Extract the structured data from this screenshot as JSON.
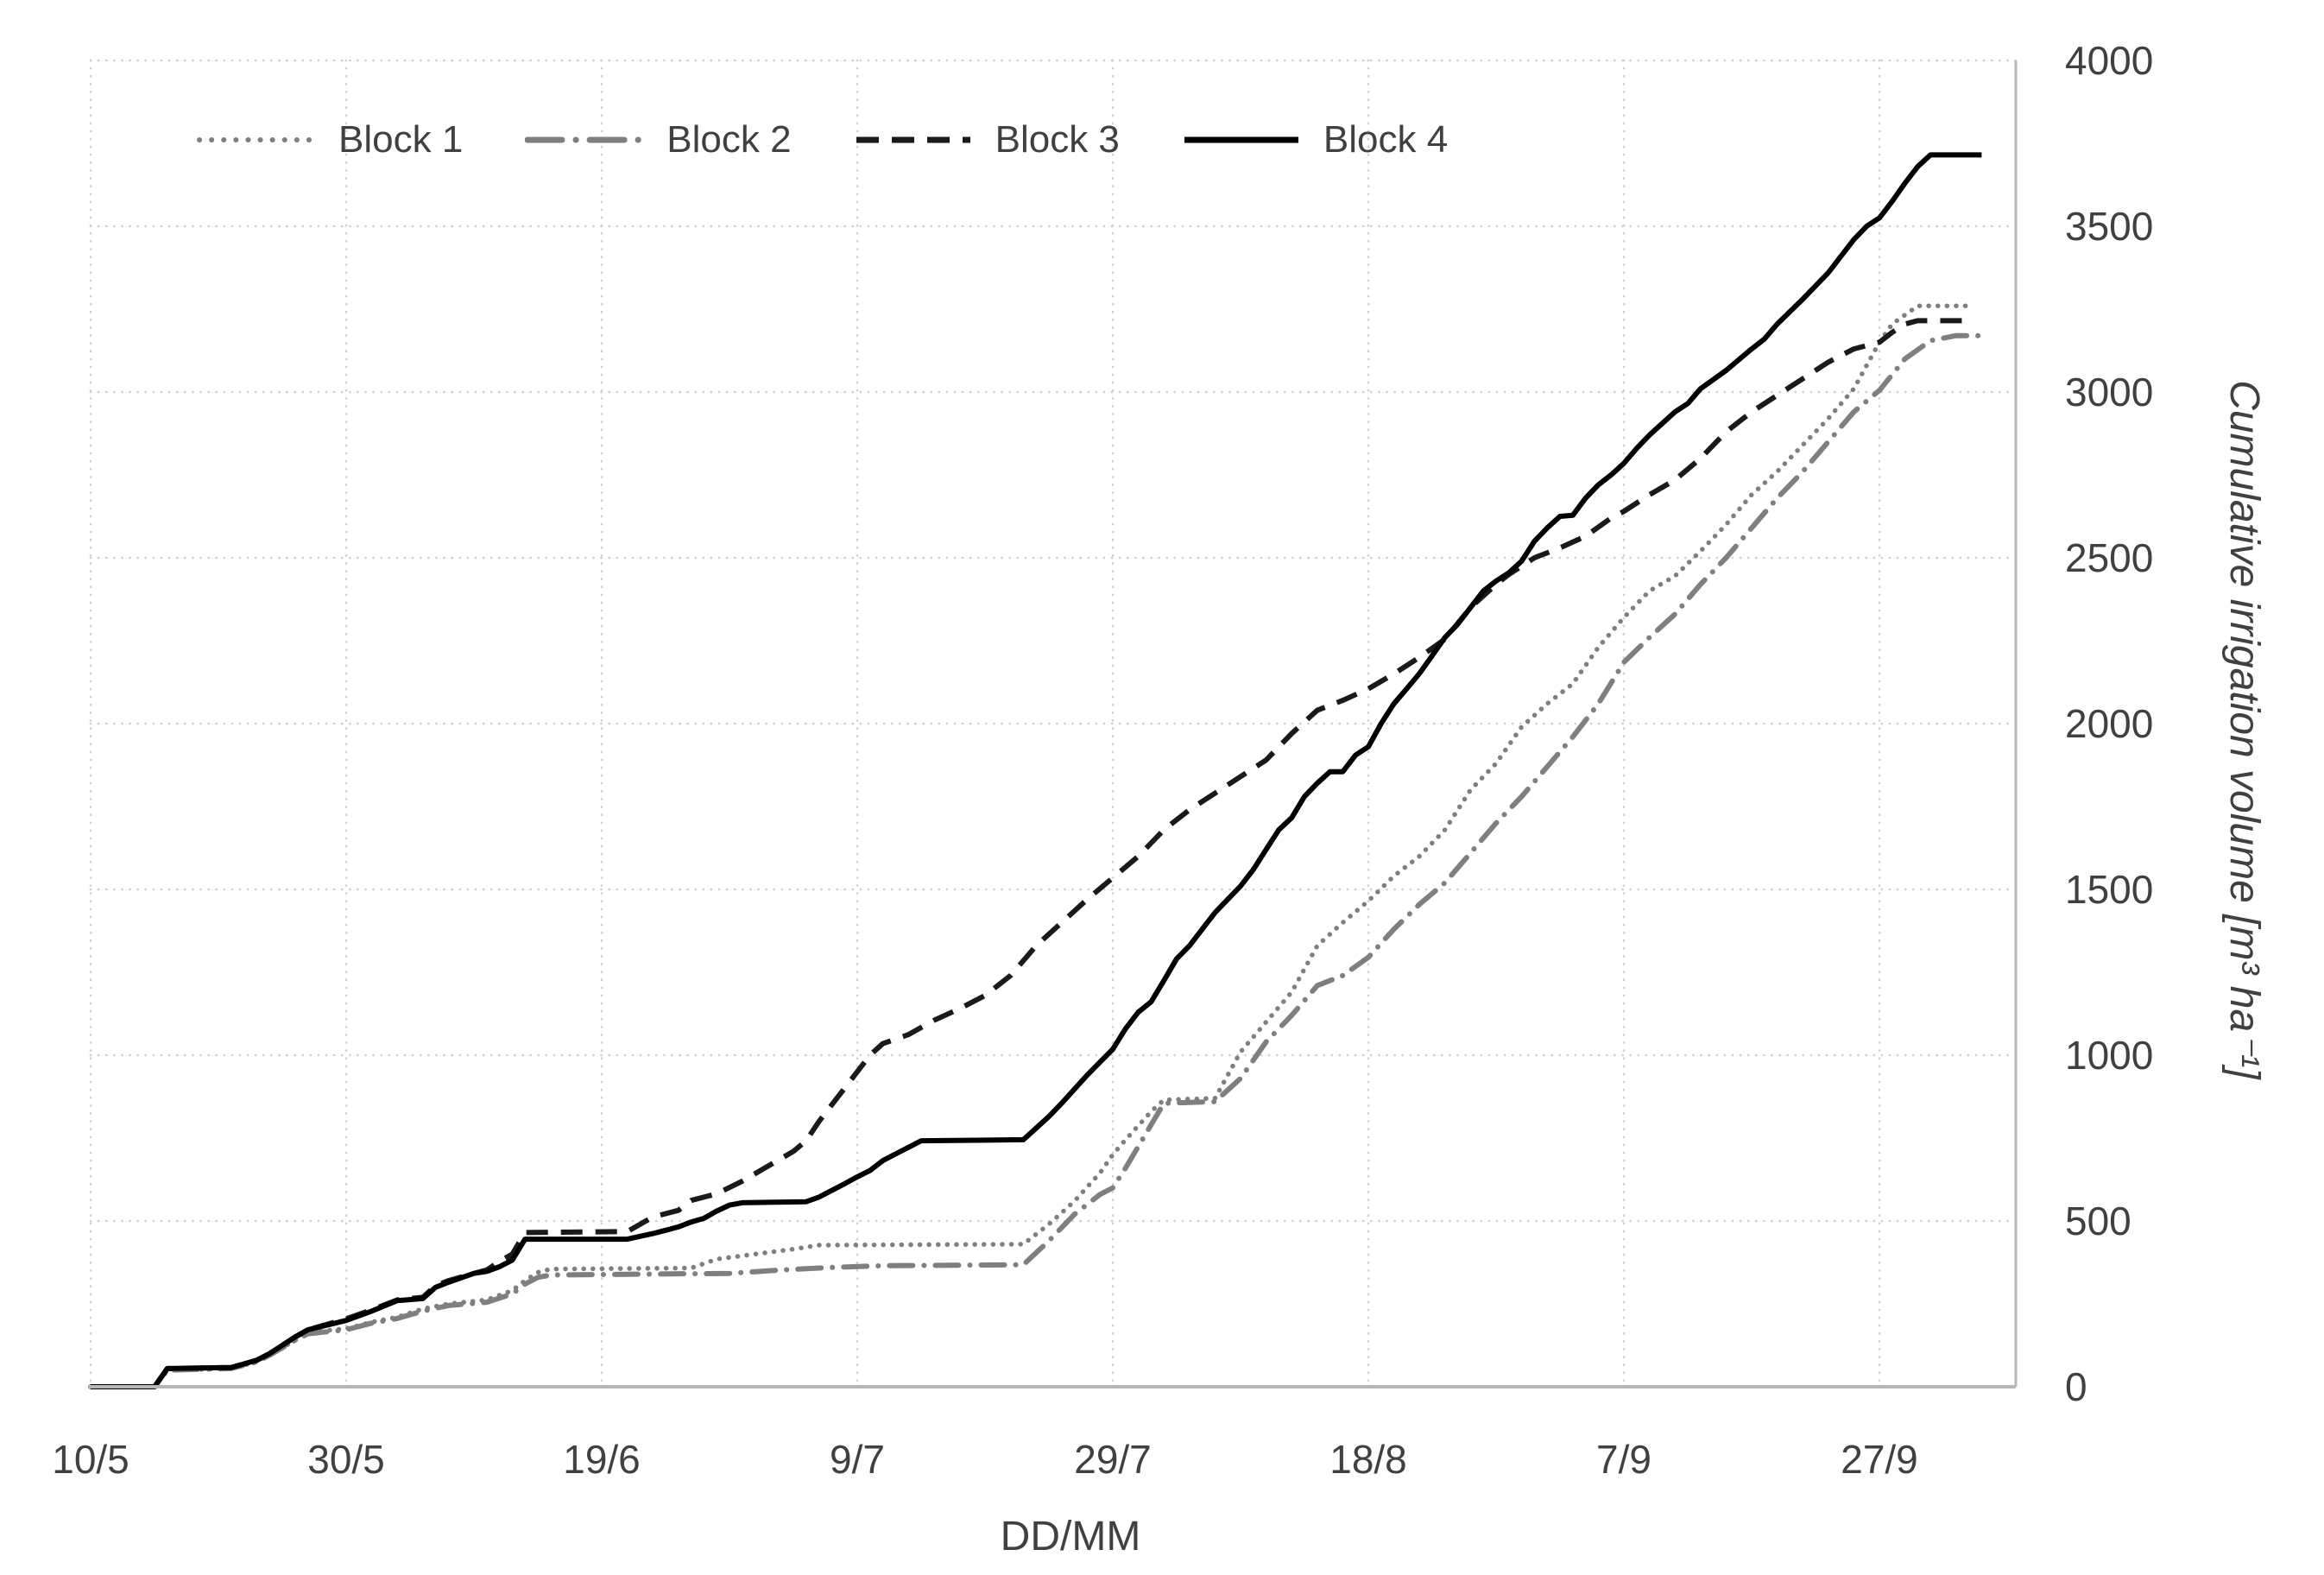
{
  "chart_data": {
    "type": "line",
    "title": "",
    "xlabel": "DD/MM",
    "ylabel": "Cumulative irrigation volume [m³ ha⁻¹]",
    "x_tick_labels": [
      "10/5",
      "30/5",
      "19/6",
      "9/7",
      "29/7",
      "18/8",
      "7/9",
      "27/9"
    ],
    "x_tick_days": [
      0,
      20,
      40,
      60,
      80,
      100,
      120,
      140
    ],
    "x_range_days": [
      0,
      150.6
    ],
    "ylim": [
      0,
      4000
    ],
    "y_ticks": [
      0,
      500,
      1000,
      1500,
      2000,
      2500,
      3000,
      3500,
      4000
    ],
    "grid": "dotted, both axes",
    "legend_position": "top-inside",
    "legend_labels": [
      "Block 1",
      "Block 2",
      "Block 3",
      "Block 4"
    ],
    "series": [
      {
        "name": "Block 1",
        "style": "dotted",
        "color": "#7f7f7f",
        "points": [
          [
            0,
            0
          ],
          [
            5,
            0
          ],
          [
            6,
            50
          ],
          [
            11,
            55
          ],
          [
            13,
            75
          ],
          [
            14,
            95
          ],
          [
            16,
            140
          ],
          [
            17,
            165
          ],
          [
            20,
            175
          ],
          [
            22,
            195
          ],
          [
            24,
            210
          ],
          [
            26,
            235
          ],
          [
            28,
            250
          ],
          [
            31,
            262
          ],
          [
            33,
            290
          ],
          [
            34,
            320
          ],
          [
            35,
            345
          ],
          [
            36,
            355
          ],
          [
            47,
            358
          ],
          [
            49,
            385
          ],
          [
            52,
            400
          ],
          [
            55,
            415
          ],
          [
            57,
            427
          ],
          [
            73,
            430
          ],
          [
            75,
            490
          ],
          [
            77,
            560
          ],
          [
            79,
            645
          ],
          [
            80,
            700
          ],
          [
            81,
            745
          ],
          [
            83,
            830
          ],
          [
            84,
            865
          ],
          [
            88,
            870
          ],
          [
            90,
            1010
          ],
          [
            92,
            1100
          ],
          [
            94,
            1190
          ],
          [
            96,
            1330
          ],
          [
            98,
            1400
          ],
          [
            100,
            1465
          ],
          [
            102,
            1540
          ],
          [
            104,
            1600
          ],
          [
            106,
            1680
          ],
          [
            108,
            1800
          ],
          [
            110,
            1880
          ],
          [
            112,
            1990
          ],
          [
            114,
            2060
          ],
          [
            116,
            2120
          ],
          [
            118,
            2230
          ],
          [
            120,
            2320
          ],
          [
            122,
            2400
          ],
          [
            124,
            2445
          ],
          [
            126,
            2520
          ],
          [
            128,
            2600
          ],
          [
            130,
            2690
          ],
          [
            132,
            2760
          ],
          [
            134,
            2840
          ],
          [
            136,
            2920
          ],
          [
            138,
            3010
          ],
          [
            140,
            3150
          ],
          [
            141,
            3205
          ],
          [
            143,
            3260
          ],
          [
            147,
            3260
          ]
        ]
      },
      {
        "name": "Block 2",
        "style": "dash-dot",
        "color": "#7f7f7f",
        "points": [
          [
            0,
            0
          ],
          [
            5,
            0
          ],
          [
            6,
            50
          ],
          [
            11,
            55
          ],
          [
            13,
            75
          ],
          [
            14,
            95
          ],
          [
            16,
            140
          ],
          [
            17,
            160
          ],
          [
            20,
            172
          ],
          [
            22,
            192
          ],
          [
            24,
            206
          ],
          [
            26,
            228
          ],
          [
            28,
            245
          ],
          [
            31,
            255
          ],
          [
            33,
            280
          ],
          [
            34,
            310
          ],
          [
            35,
            330
          ],
          [
            36,
            337
          ],
          [
            50,
            342
          ],
          [
            54,
            352
          ],
          [
            58,
            360
          ],
          [
            62,
            365
          ],
          [
            73,
            368
          ],
          [
            75,
            440
          ],
          [
            77,
            520
          ],
          [
            79,
            580
          ],
          [
            80,
            600
          ],
          [
            81,
            660
          ],
          [
            83,
            790
          ],
          [
            84,
            855
          ],
          [
            88,
            860
          ],
          [
            90,
            930
          ],
          [
            92,
            1040
          ],
          [
            94,
            1120
          ],
          [
            96,
            1210
          ],
          [
            98,
            1240
          ],
          [
            100,
            1295
          ],
          [
            102,
            1380
          ],
          [
            104,
            1455
          ],
          [
            106,
            1520
          ],
          [
            108,
            1610
          ],
          [
            110,
            1700
          ],
          [
            112,
            1780
          ],
          [
            114,
            1870
          ],
          [
            116,
            1960
          ],
          [
            118,
            2060
          ],
          [
            120,
            2185
          ],
          [
            122,
            2260
          ],
          [
            124,
            2330
          ],
          [
            126,
            2420
          ],
          [
            128,
            2500
          ],
          [
            130,
            2590
          ],
          [
            132,
            2680
          ],
          [
            134,
            2760
          ],
          [
            136,
            2850
          ],
          [
            138,
            2940
          ],
          [
            140,
            3005
          ],
          [
            142,
            3100
          ],
          [
            144,
            3155
          ],
          [
            146,
            3170
          ],
          [
            148,
            3170
          ]
        ]
      },
      {
        "name": "Block 3",
        "style": "dashed",
        "color": "#1a1a1a",
        "points": [
          [
            0,
            0
          ],
          [
            5,
            0
          ],
          [
            6,
            55
          ],
          [
            11,
            58
          ],
          [
            13,
            80
          ],
          [
            14,
            100
          ],
          [
            16,
            150
          ],
          [
            17,
            172
          ],
          [
            20,
            205
          ],
          [
            22,
            232
          ],
          [
            24,
            262
          ],
          [
            26,
            270
          ],
          [
            27,
            305
          ],
          [
            28,
            320
          ],
          [
            30,
            342
          ],
          [
            31,
            352
          ],
          [
            32,
            378
          ],
          [
            33,
            400
          ],
          [
            34,
            465
          ],
          [
            42,
            468
          ],
          [
            44,
            512
          ],
          [
            46,
            532
          ],
          [
            47,
            562
          ],
          [
            49,
            582
          ],
          [
            51,
            620
          ],
          [
            53,
            665
          ],
          [
            55,
            710
          ],
          [
            56,
            742
          ],
          [
            57,
            800
          ],
          [
            58,
            850
          ],
          [
            60,
            950
          ],
          [
            61,
            1000
          ],
          [
            62,
            1035
          ],
          [
            64,
            1062
          ],
          [
            66,
            1105
          ],
          [
            68,
            1140
          ],
          [
            70,
            1180
          ],
          [
            72,
            1240
          ],
          [
            74,
            1330
          ],
          [
            76,
            1400
          ],
          [
            78,
            1470
          ],
          [
            80,
            1535
          ],
          [
            82,
            1600
          ],
          [
            84,
            1680
          ],
          [
            86,
            1740
          ],
          [
            88,
            1790
          ],
          [
            90,
            1840
          ],
          [
            92,
            1890
          ],
          [
            94,
            1970
          ],
          [
            96,
            2040
          ],
          [
            98,
            2070
          ],
          [
            100,
            2105
          ],
          [
            102,
            2150
          ],
          [
            104,
            2200
          ],
          [
            106,
            2255
          ],
          [
            108,
            2350
          ],
          [
            110,
            2420
          ],
          [
            111,
            2450
          ],
          [
            113,
            2500
          ],
          [
            115,
            2530
          ],
          [
            117,
            2565
          ],
          [
            119,
            2620
          ],
          [
            120,
            2640
          ],
          [
            122,
            2690
          ],
          [
            124,
            2735
          ],
          [
            126,
            2800
          ],
          [
            128,
            2880
          ],
          [
            130,
            2940
          ],
          [
            132,
            2990
          ],
          [
            134,
            3040
          ],
          [
            136,
            3090
          ],
          [
            138,
            3130
          ],
          [
            140,
            3150
          ],
          [
            141,
            3180
          ],
          [
            142,
            3205
          ],
          [
            143,
            3215
          ],
          [
            147,
            3215
          ]
        ]
      },
      {
        "name": "Block 4",
        "style": "solid",
        "color": "#000000",
        "points": [
          [
            0,
            0
          ],
          [
            5,
            0
          ],
          [
            6,
            55
          ],
          [
            11,
            58
          ],
          [
            13,
            80
          ],
          [
            14,
            100
          ],
          [
            16,
            150
          ],
          [
            17,
            172
          ],
          [
            20,
            200
          ],
          [
            22,
            228
          ],
          [
            24,
            260
          ],
          [
            26,
            266
          ],
          [
            27,
            300
          ],
          [
            28,
            315
          ],
          [
            30,
            342
          ],
          [
            31,
            348
          ],
          [
            32,
            362
          ],
          [
            33,
            382
          ],
          [
            34,
            445
          ],
          [
            42,
            445
          ],
          [
            44,
            462
          ],
          [
            45,
            472
          ],
          [
            46,
            482
          ],
          [
            47,
            497
          ],
          [
            48,
            508
          ],
          [
            49,
            530
          ],
          [
            50,
            548
          ],
          [
            51,
            555
          ],
          [
            56,
            558
          ],
          [
            57,
            572
          ],
          [
            58,
            592
          ],
          [
            59,
            612
          ],
          [
            60,
            633
          ],
          [
            61,
            652
          ],
          [
            62,
            682
          ],
          [
            63,
            702
          ],
          [
            64,
            722
          ],
          [
            65,
            742
          ],
          [
            73,
            745
          ],
          [
            74,
            780
          ],
          [
            75,
            815
          ],
          [
            76,
            855
          ],
          [
            78,
            940
          ],
          [
            80,
            1018
          ],
          [
            81,
            1080
          ],
          [
            82,
            1130
          ],
          [
            83,
            1161
          ],
          [
            84,
            1225
          ],
          [
            85,
            1291
          ],
          [
            86,
            1330
          ],
          [
            87,
            1380
          ],
          [
            88,
            1430
          ],
          [
            89,
            1470
          ],
          [
            90,
            1510
          ],
          [
            91,
            1560
          ],
          [
            92,
            1620
          ],
          [
            93,
            1680
          ],
          [
            94,
            1716
          ],
          [
            95,
            1780
          ],
          [
            96,
            1820
          ],
          [
            97,
            1855
          ],
          [
            98,
            1855
          ],
          [
            99,
            1905
          ],
          [
            100,
            1930
          ],
          [
            101,
            2000
          ],
          [
            102,
            2060
          ],
          [
            103,
            2105
          ],
          [
            104,
            2151
          ],
          [
            105,
            2205
          ],
          [
            106,
            2260
          ],
          [
            107,
            2300
          ],
          [
            108,
            2350
          ],
          [
            109,
            2400
          ],
          [
            110,
            2430
          ],
          [
            111,
            2455
          ],
          [
            112,
            2490
          ],
          [
            113,
            2550
          ],
          [
            114,
            2590
          ],
          [
            115,
            2625
          ],
          [
            116,
            2628
          ],
          [
            117,
            2680
          ],
          [
            118,
            2720
          ],
          [
            119,
            2750
          ],
          [
            120,
            2785
          ],
          [
            121,
            2830
          ],
          [
            122,
            2870
          ],
          [
            124,
            2940
          ],
          [
            125,
            2965
          ],
          [
            126,
            3010
          ],
          [
            128,
            3065
          ],
          [
            130,
            3130
          ],
          [
            131,
            3160
          ],
          [
            132,
            3205
          ],
          [
            134,
            3280
          ],
          [
            136,
            3360
          ],
          [
            137,
            3410
          ],
          [
            138,
            3460
          ],
          [
            139,
            3500
          ],
          [
            140,
            3525
          ],
          [
            141,
            3575
          ],
          [
            142,
            3630
          ],
          [
            143,
            3680
          ],
          [
            144,
            3715
          ],
          [
            148,
            3715
          ]
        ]
      }
    ],
    "colors": {
      "gridline": "#cfcfcf",
      "axis_line": "#b7b7b7",
      "tick_label": "#404040",
      "axis_title": "#404040",
      "background": "#ffffff"
    }
  }
}
